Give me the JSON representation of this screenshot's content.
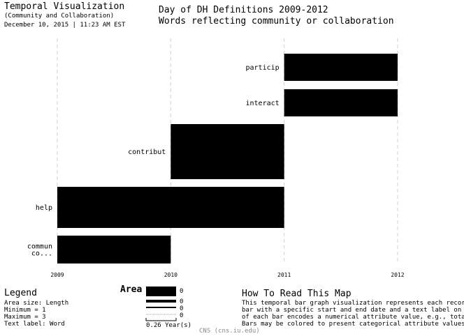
{
  "header": {
    "app_title": "Temporal Visualization",
    "app_subtitle": "(Community and Collaboration)",
    "date_line": "December 10, 2015 | 11:23 AM EST",
    "chart_title": "Day of DH Definitions 2009-2012",
    "chart_subtitle": "Words reflecting community or collaboration"
  },
  "chart_data": {
    "type": "bar",
    "orientation": "horizontal",
    "x_ticks": [
      "2009",
      "2010",
      "2011",
      "2012"
    ],
    "xlim": [
      2009,
      2012
    ],
    "grid": "vertical dashed at years",
    "bars": [
      {
        "label": "particip",
        "start": 2011,
        "end": 2012
      },
      {
        "label": "interact",
        "start": 2011,
        "end": 2012
      },
      {
        "label": "contribut",
        "start": 2010,
        "end": 2011
      },
      {
        "label": "help",
        "start": 2009,
        "end": 2011
      },
      {
        "label_lines": [
          "commun",
          "co..."
        ],
        "start": 2009,
        "end": 2010
      }
    ]
  },
  "legend": {
    "title": "Legend",
    "lines": [
      "Area size: Length",
      "Minimum = 1",
      "Maximum = 3",
      "Text label: Word"
    ]
  },
  "area_legend": {
    "title": "Area",
    "values": [
      "0",
      "0",
      "0",
      "0"
    ],
    "scale_label": "0.26 Year(s)"
  },
  "howto": {
    "title": "How To Read This Map",
    "lines": [
      "This temporal bar graph visualization represents each record a",
      "bar with a specific start and end date and a text label on ite",
      "of each bar encodes a numerical attribute value, e.g., total a",
      "Bars may be colored to present categorical attribute values of"
    ]
  },
  "footer": "CNS (cns.iu.edu)"
}
